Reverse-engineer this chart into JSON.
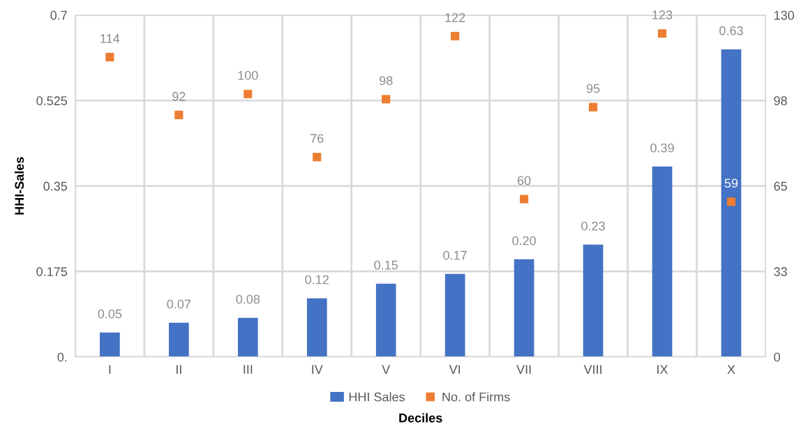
{
  "chart_data": {
    "type": "bar",
    "xlabel": "Deciles",
    "ylabel": "HHI-Sales",
    "categories": [
      "I",
      "II",
      "III",
      "IV",
      "V",
      "VI",
      "VII",
      "VIII",
      "IX",
      "X"
    ],
    "series": [
      {
        "name": "HHI Sales",
        "color": "#4472c4",
        "values": [
          0.05,
          0.07,
          0.08,
          0.12,
          0.15,
          0.17,
          0.2,
          0.23,
          0.39,
          0.63
        ],
        "value_labels": [
          "0.05",
          "0.07",
          "0.08",
          "0.12",
          "0.15",
          "0.17",
          "0.20",
          "0.23",
          "0.39",
          "0.63"
        ]
      },
      {
        "name": "No. of Firms",
        "type": "scatter",
        "axis": "y2",
        "marker": "square",
        "color": "#ed7d31",
        "values": [
          114,
          92,
          100,
          76,
          98,
          122,
          60,
          95,
          123,
          59
        ],
        "value_labels": [
          "114",
          "92",
          "100",
          "76",
          "98",
          "122",
          "60",
          "95",
          "123",
          "59"
        ]
      }
    ],
    "ylim": [
      0,
      0.7
    ],
    "yticks": [
      {
        "value": 0,
        "label": "0."
      },
      0.175,
      0.35,
      0.525,
      0.7
    ],
    "y2lim": [
      0,
      130
    ],
    "y2ticks": [
      0,
      {
        "value": 32.5,
        "label": "33"
      },
      65,
      {
        "value": 97.5,
        "label": "98"
      },
      130
    ],
    "grid": true,
    "legend": "bottom"
  }
}
